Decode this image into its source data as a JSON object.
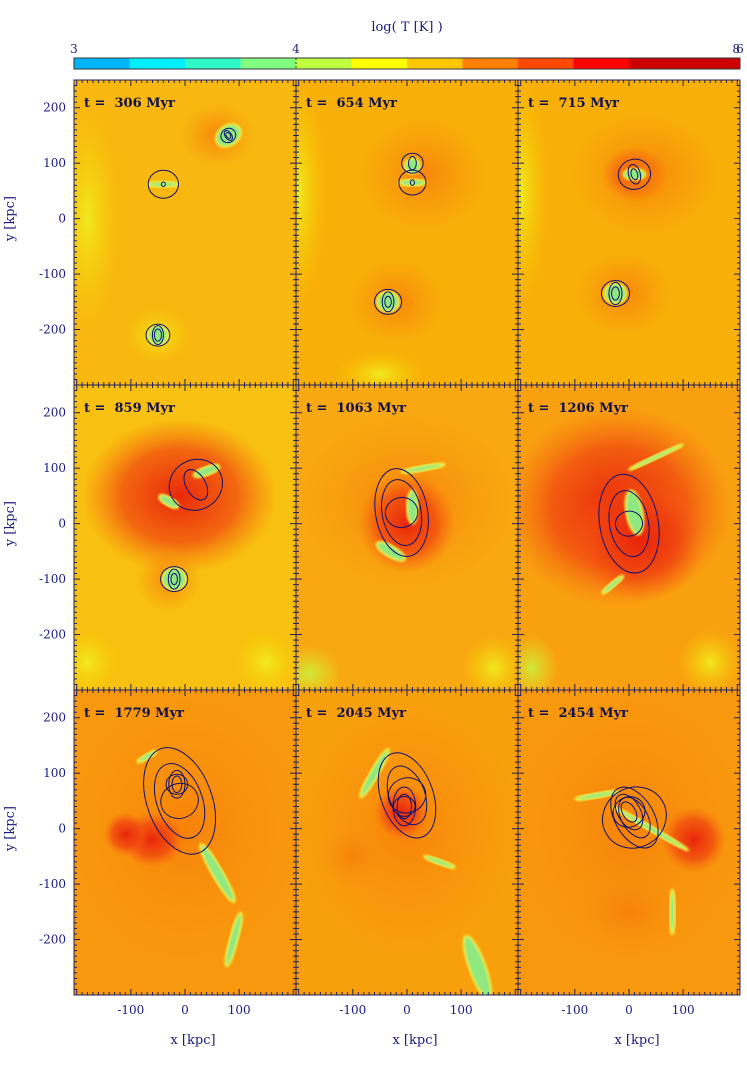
{
  "chart_data": {
    "type": "heatmap",
    "colorbar": {
      "label": "log( T [K] )",
      "ticks": [
        "3",
        "4",
        "6",
        "8"
      ],
      "tick_values": [
        3,
        4,
        6,
        8
      ],
      "colors": [
        "#00b4ff",
        "#00f0ff",
        "#30f8c8",
        "#80ff80",
        "#c0ff40",
        "#ffff00",
        "#ffc800",
        "#ff8000",
        "#ff4800",
        "#ff0000",
        "#cc0000",
        "#cc0000"
      ]
    },
    "xlabel": "x [kpc]",
    "ylabel": "y [kpc]",
    "xticks": [
      "-100",
      "0",
      "100"
    ],
    "xtick_values": [
      -100,
      0,
      100
    ],
    "yticks": [
      "200",
      "100",
      "0",
      "-100",
      "-200"
    ],
    "ytick_values": [
      200,
      100,
      0,
      -100,
      -200
    ],
    "xlim": [
      -205,
      205
    ],
    "ylim": [
      -300,
      250
    ],
    "panels": [
      {
        "label": "t =  306 Myr"
      },
      {
        "label": "t =  654 Myr"
      },
      {
        "label": "t =  715 Myr"
      },
      {
        "label": "t =  859 Myr"
      },
      {
        "label": "t =  1063 Myr"
      },
      {
        "label": "t =  1206 Myr"
      },
      {
        "label": "t =  1779 Myr"
      },
      {
        "label": "t =  2045 Myr"
      },
      {
        "label": "t =  2454 Myr"
      }
    ]
  }
}
